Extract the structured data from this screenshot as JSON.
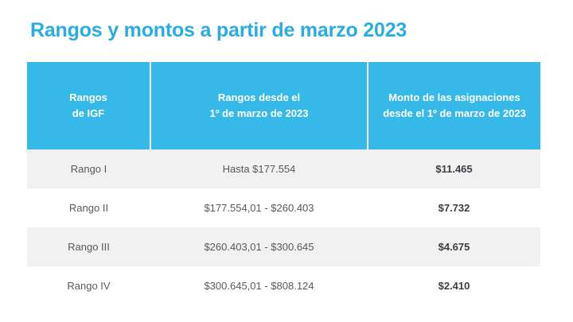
{
  "title": "Rangos y montos a partir de marzo 2023",
  "table": {
    "headers": [
      {
        "lines": [
          "Rangos",
          "de IGF"
        ]
      },
      {
        "lines": [
          "Rangos desde el",
          "1º de marzo de 2023"
        ]
      },
      {
        "lines": [
          "Monto de las asignaciones",
          "desde el 1º de marzo de 2023"
        ]
      }
    ],
    "rows": [
      {
        "rango": "Rango I",
        "desde": "Hasta $177.554",
        "monto": "$11.465"
      },
      {
        "rango": "Rango II",
        "desde": "$177.554,01 - $260.403",
        "monto": "$7.732"
      },
      {
        "rango": "Rango III",
        "desde": "$260.403,01 - $300.645",
        "monto": "$4.675"
      },
      {
        "rango": "Rango IV",
        "desde": "$300.645,01 - $808.124",
        "monto": "$2.410"
      }
    ]
  },
  "colors": {
    "title": "#2aace2",
    "header_bg": "#36b8e9",
    "row_shade": "#f1f1f1"
  }
}
